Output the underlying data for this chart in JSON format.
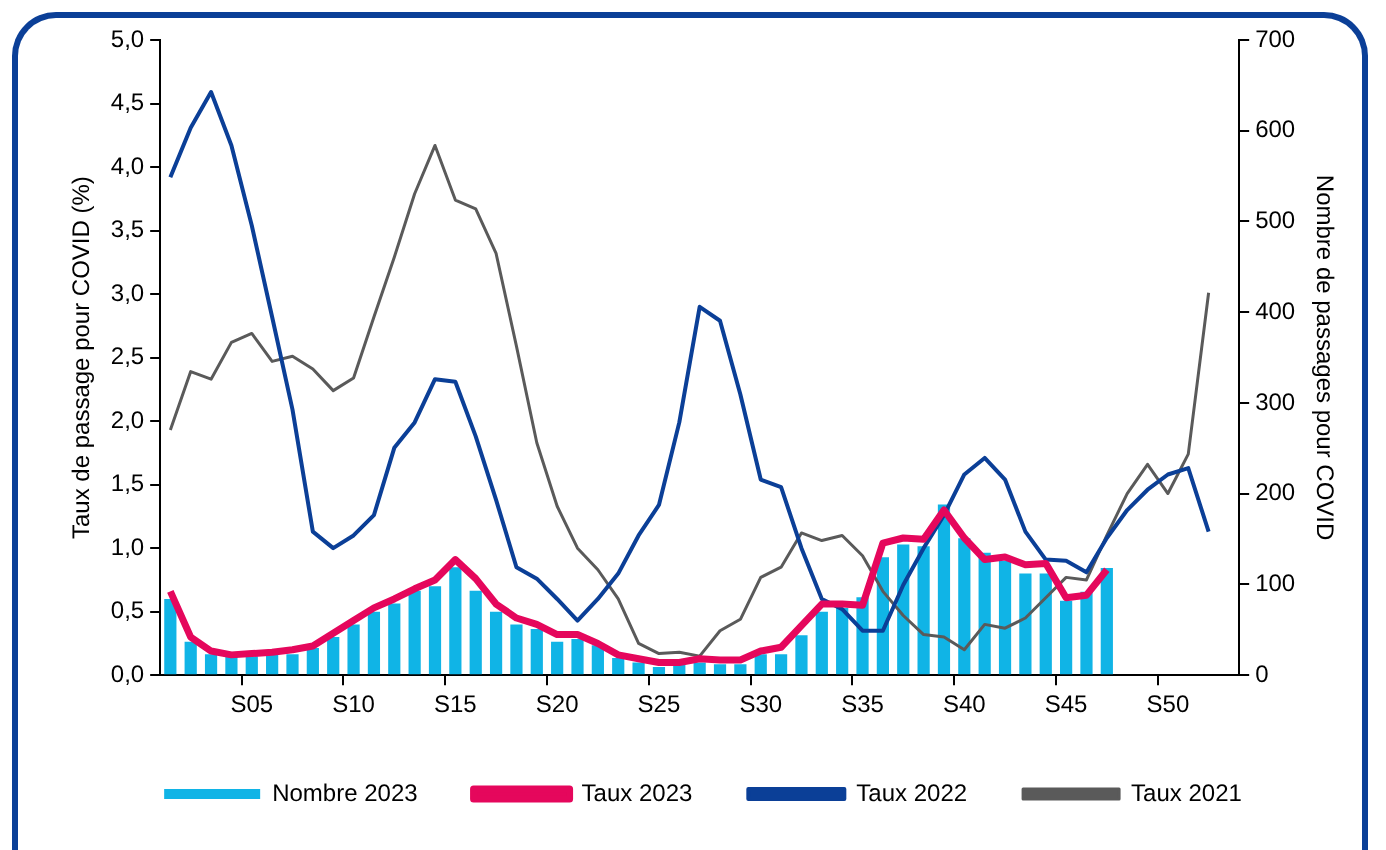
{
  "chart_data": {
    "type": "bar",
    "categories": [
      null,
      null,
      null,
      null,
      "S05",
      null,
      null,
      null,
      null,
      "S10",
      null,
      null,
      null,
      null,
      "S15",
      null,
      null,
      null,
      null,
      "S20",
      null,
      null,
      null,
      null,
      "S25",
      null,
      null,
      null,
      null,
      "S30",
      null,
      null,
      null,
      null,
      "S35",
      null,
      null,
      null,
      null,
      "S40",
      null,
      null,
      null,
      null,
      "S45",
      null,
      null,
      null,
      null,
      "S50",
      null,
      null,
      null
    ],
    "series": [
      {
        "name": "Nombre 2023",
        "axis": "y2",
        "color": "#10b4e6",
        "values": [
          84,
          37,
          23,
          21,
          21,
          23,
          23,
          30,
          42,
          56,
          70,
          79,
          93,
          98,
          119,
          93,
          70,
          56,
          51,
          37,
          40,
          33,
          19,
          14,
          9,
          12,
          14,
          12,
          12,
          23,
          23,
          44,
          70,
          74,
          86,
          130,
          144,
          142,
          188,
          151,
          135,
          126,
          112,
          112,
          82,
          92,
          118,
          null,
          null,
          null,
          null,
          null,
          null
        ]
      },
      {
        "name": "Taux 2023",
        "type": "line",
        "color": "#e5075c",
        "values": [
          0.66,
          0.3,
          0.19,
          0.16,
          0.17,
          0.18,
          0.2,
          0.23,
          0.33,
          0.43,
          0.53,
          0.6,
          0.68,
          0.75,
          0.91,
          0.76,
          0.56,
          0.45,
          0.4,
          0.32,
          0.32,
          0.25,
          0.16,
          0.13,
          0.1,
          0.1,
          0.13,
          0.12,
          0.12,
          0.19,
          0.22,
          0.39,
          0.56,
          0.56,
          0.55,
          1.04,
          1.08,
          1.07,
          1.3,
          1.08,
          0.91,
          0.93,
          0.87,
          0.88,
          0.61,
          0.63,
          0.83,
          null,
          null,
          null,
          null,
          null,
          null
        ]
      },
      {
        "name": "Taux 2022",
        "type": "line",
        "color": "#0b3f97",
        "values": [
          3.92,
          4.31,
          4.59,
          4.17,
          3.54,
          2.82,
          2.09,
          1.13,
          1.0,
          1.1,
          1.26,
          1.79,
          1.99,
          2.33,
          2.31,
          1.88,
          1.38,
          0.85,
          0.76,
          0.6,
          0.43,
          0.6,
          0.8,
          1.1,
          1.34,
          1.99,
          2.9,
          2.79,
          2.21,
          1.54,
          1.48,
          1.0,
          0.6,
          0.52,
          0.35,
          0.35,
          0.71,
          1.0,
          1.26,
          1.58,
          1.71,
          1.54,
          1.13,
          0.91,
          0.9,
          0.81,
          1.08,
          1.3,
          1.46,
          1.58,
          1.63,
          1.13,
          null
        ]
      },
      {
        "name": "Taux 2021",
        "type": "line",
        "color": "#5a5a5a",
        "values": [
          1.93,
          2.39,
          2.33,
          2.62,
          2.69,
          2.47,
          2.51,
          2.41,
          2.24,
          2.34,
          2.82,
          3.29,
          3.79,
          4.17,
          3.74,
          3.67,
          3.32,
          2.59,
          1.83,
          1.33,
          1.0,
          0.83,
          0.6,
          0.25,
          0.17,
          0.18,
          0.15,
          0.35,
          0.44,
          0.77,
          0.85,
          1.12,
          1.06,
          1.1,
          0.94,
          0.66,
          0.47,
          0.32,
          0.3,
          0.2,
          0.4,
          0.37,
          0.45,
          0.61,
          0.77,
          0.75,
          1.1,
          1.43,
          1.66,
          1.43,
          1.74,
          3.01,
          null
        ]
      }
    ],
    "ylabel": "Taux de passage pour COVID (%)",
    "y2label": "Nombre de passages pour COVID",
    "ylim": [
      0,
      5
    ],
    "yticks": [
      {
        "value": 0,
        "label": "0,0"
      },
      {
        "value": 0.5,
        "label": "0,5"
      },
      {
        "value": 1,
        "label": "1,0"
      },
      {
        "value": 1.5,
        "label": "1,5"
      },
      {
        "value": 2,
        "label": "2,0"
      },
      {
        "value": 2.5,
        "label": "2,5"
      },
      {
        "value": 3,
        "label": "3,0"
      },
      {
        "value": 3.5,
        "label": "3,5"
      },
      {
        "value": 4,
        "label": "4,0"
      },
      {
        "value": 4.5,
        "label": "4,5"
      },
      {
        "value": 5,
        "label": "5,0"
      }
    ],
    "y2lim": [
      0,
      700
    ],
    "y2ticks": [
      0,
      100,
      200,
      300,
      400,
      500,
      600,
      700
    ],
    "grid": false,
    "legend": "bottom"
  }
}
